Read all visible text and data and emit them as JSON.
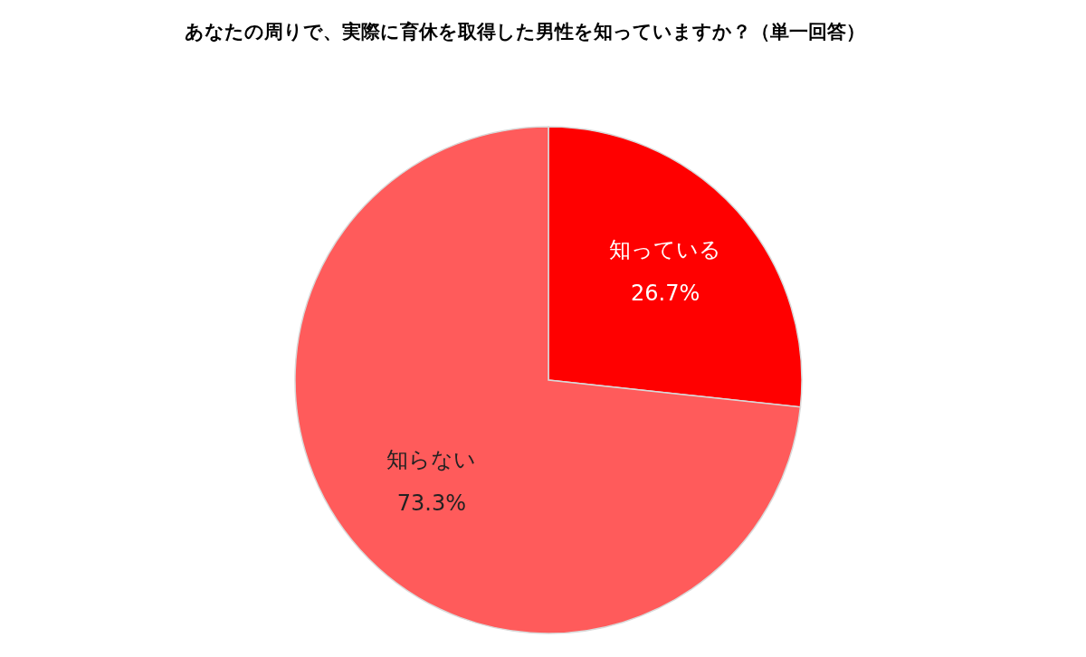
{
  "chart_data": {
    "type": "pie",
    "title": "あなたの周りで、実際に育休を取得した男性を知っていますか？（単一回答）",
    "categories": [
      "知っている",
      "知らない"
    ],
    "values": [
      26.7,
      73.3
    ],
    "colors": [
      "#ff0000",
      "#ff5b5b"
    ],
    "value_labels": [
      "26.7%",
      "73.3%"
    ]
  }
}
